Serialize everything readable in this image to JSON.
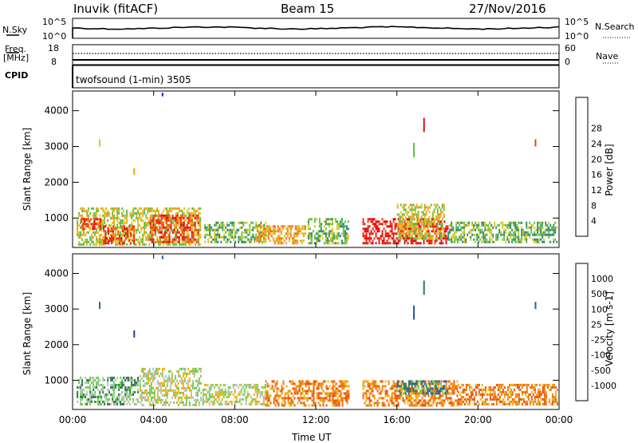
{
  "header": {
    "station": "Inuvik (fitACF)",
    "beam": "Beam 15",
    "date": "27/Nov/2016"
  },
  "strip_nsky": {
    "left_label": "N.Sky",
    "left_top_tick": "10^5",
    "left_bottom_tick": "10^0",
    "right_top_tick": "10^5",
    "right_bottom_tick": "10^0",
    "right_label": "N.Search"
  },
  "strip_freq": {
    "left_label_line1": "Freq.",
    "left_label_line2": "[MHz]",
    "left_top_tick": "18",
    "left_bottom_tick": "8",
    "right_top_tick": "60",
    "right_bottom_tick": "0",
    "right_label": "Nave"
  },
  "cpid": {
    "label": "CPID",
    "value": "twofsound (1-min) 3505"
  },
  "chart_data": [
    {
      "type": "heatmap",
      "name": "power-panel",
      "ylabel": "Slant Range [km]",
      "ylim": [
        180,
        4550
      ],
      "yticks": [
        "1000",
        "2000",
        "3000",
        "4000"
      ],
      "colorbar_label": "Power [dB]",
      "colorbar_ticks": [
        "4",
        "8",
        "12",
        "16",
        "20",
        "24",
        "28"
      ],
      "colorbar_colors": [
        "#1a1aff",
        "#2a4aa8",
        "#2f8a6a",
        "#5fbf4a",
        "#d8c820",
        "#f5a015",
        "#f07010",
        "#ee3b12",
        "#e61010"
      ],
      "clusters": [
        {
          "t0": 0.2,
          "t1": 6.3,
          "r0": 280,
          "r1": 1300,
          "level": 4
        },
        {
          "t0": 3.8,
          "t1": 6.2,
          "r0": 300,
          "r1": 1100,
          "level": 7
        },
        {
          "t0": 1.5,
          "t1": 3.0,
          "r0": 300,
          "r1": 800,
          "level": 7
        },
        {
          "t0": 0.4,
          "t1": 1.4,
          "r0": 700,
          "r1": 1000,
          "level": 7
        },
        {
          "t0": 6.5,
          "t1": 9.5,
          "r0": 300,
          "r1": 900,
          "level": 3
        },
        {
          "t0": 9.0,
          "t1": 11.5,
          "r0": 300,
          "r1": 800,
          "level": 5
        },
        {
          "t0": 11.6,
          "t1": 13.6,
          "r0": 280,
          "r1": 1000,
          "level": 3
        },
        {
          "t0": 14.3,
          "t1": 18.5,
          "r0": 280,
          "r1": 1000,
          "level": 8
        },
        {
          "t0": 16.0,
          "t1": 18.3,
          "r0": 400,
          "r1": 1400,
          "level": 4
        },
        {
          "t0": 18.5,
          "t1": 23.9,
          "r0": 300,
          "r1": 900,
          "level": 3
        }
      ]
    },
    {
      "type": "heatmap",
      "name": "velocity-panel",
      "ylabel": "Slant Range [km]",
      "ylim": [
        180,
        4550
      ],
      "yticks": [
        "1000",
        "2000",
        "3000",
        "4000"
      ],
      "colorbar_label": "Velocity [m s-1]",
      "colorbar_ticks": [
        "1000",
        "500",
        "100",
        "25",
        "-25",
        "-100",
        "-500",
        "-1000"
      ],
      "colorbar_colors": [
        "#1e3aa8",
        "#2a5ab8",
        "#2c7a50",
        "#6ad050",
        "#bebebe",
        "#f0b010",
        "#f08010",
        "#f05010",
        "#e61010"
      ],
      "clusters": [
        {
          "t0": 3.3,
          "t1": 6.3,
          "r0": 300,
          "r1": 1350,
          "level": 4
        },
        {
          "t0": 0.2,
          "t1": 3.2,
          "r0": 300,
          "r1": 1100,
          "level": 3
        },
        {
          "t0": 6.4,
          "t1": 9.5,
          "r0": 300,
          "r1": 900,
          "level": 4
        },
        {
          "t0": 9.5,
          "t1": 13.6,
          "r0": 300,
          "r1": 1000,
          "level": 6
        },
        {
          "t0": 14.3,
          "t1": 19.0,
          "r0": 300,
          "r1": 1000,
          "level": 6
        },
        {
          "t0": 16.0,
          "t1": 18.5,
          "r0": 600,
          "r1": 1000,
          "level": 2
        },
        {
          "t0": 19.0,
          "t1": 23.9,
          "r0": 300,
          "r1": 900,
          "level": 6
        }
      ]
    }
  ],
  "time_axis": {
    "label": "Time UT",
    "ticks": [
      "00:00",
      "04:00",
      "08:00",
      "12:00",
      "16:00",
      "20:00",
      "00:00"
    ]
  }
}
